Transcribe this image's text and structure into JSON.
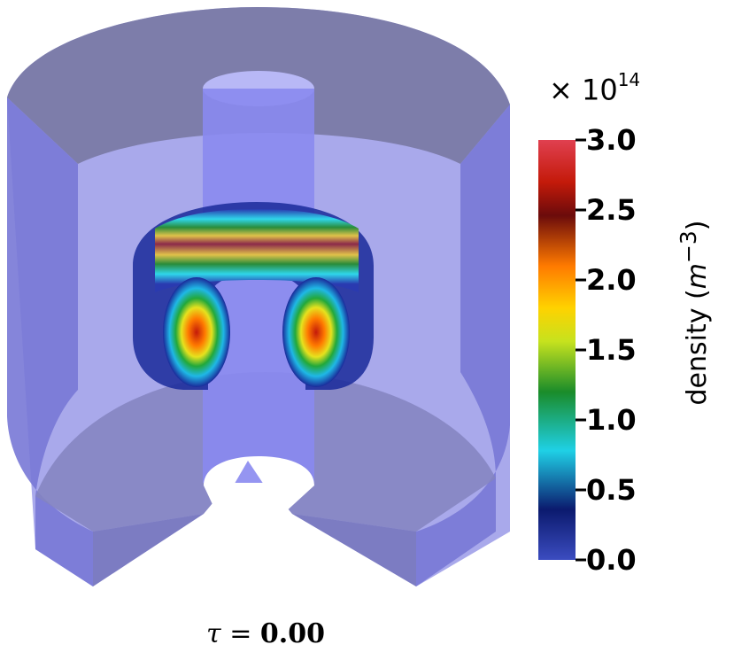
{
  "colorbar": {
    "multiplier_base": "× 10",
    "multiplier_exp": "14",
    "label_prefix": "density (",
    "label_unit": "m",
    "label_exp": "−3",
    "label_suffix": ")",
    "ticks": [
      "3.0",
      "2.5",
      "2.0",
      "1.5",
      "1.0",
      "0.5",
      "0.0"
    ],
    "colors": [
      "#3b4cc0",
      "#0b1a6e",
      "#1fd0e6",
      "#1a8c2a",
      "#c6e21e",
      "#ffd200",
      "#ff7a00",
      "#c41a0a",
      "#6b0b0b",
      "#e04050"
    ]
  },
  "time": {
    "symbol": "τ",
    "equals": "=",
    "value": "0.00"
  },
  "scene": {
    "vessel_color": "#8c8cf0",
    "vessel_edge_color": "#6a6aa8"
  }
}
